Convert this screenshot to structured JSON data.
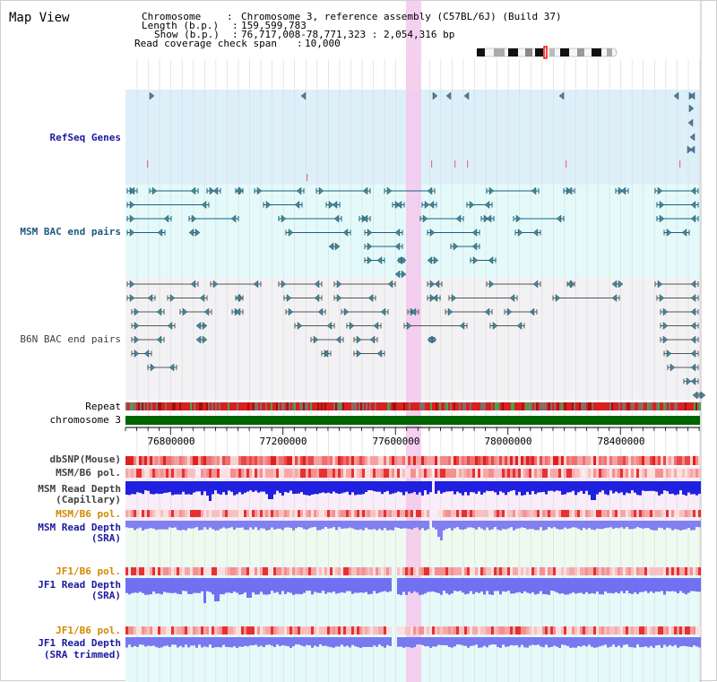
{
  "title": "Map View",
  "header": {
    "chromosome_label": "Chromosome",
    "chromosome_value": "Chromosome 3, reference assembly (C57BL/6J) (Build 37)",
    "length_label": "Length (b.p.)",
    "length_value": "159,599,783",
    "show_label": "Show (b.p.)",
    "show_value": "76,717,008-78,771,323 : 2,054,316 bp",
    "span_label": "Read coverage check span",
    "span_value": "10,000"
  },
  "tracks": {
    "refseq": "RefSeq Genes",
    "msm_bac": "MSM BAC end pairs",
    "b6n_bac": "B6N BAC end pairs",
    "repeat": "Repeat",
    "chromosome": "chromosome 3",
    "dbsnp": "dbSNP(Mouse)",
    "msm_b6_pol": "MSM/B6 pol.",
    "msm_depth_cap_1": "MSM Read Depth",
    "msm_depth_cap_2": "(Capillary)",
    "msm_b6_pol2": "MSM/B6 pol.",
    "msm_depth_sra_1": "MSM Read Depth",
    "msm_depth_sra_2": "(SRA)",
    "jf1_b6_pol": "JF1/B6 pol.",
    "jf1_depth_sra_1": "JF1 Read Depth",
    "jf1_depth_sra_2": "(SRA)",
    "jf1_b6_pol2": "JF1/B6 pol.",
    "jf1_depth_trim_1": "JF1 Read Depth",
    "jf1_depth_trim_2": "(SRA trimmed)"
  },
  "axis": {
    "ticks": [
      "76800000",
      "77200000",
      "77600000",
      "78000000",
      "78400000"
    ]
  },
  "colors": {
    "label_blue": "#1a1aa0",
    "label_teal": "#1a5a7a",
    "label_orange": "#d08a00",
    "label_dark": "#404040",
    "highlight": "#f5c8ec",
    "refseq_bg": "#ddf0fa",
    "msm_bg": "#e4fafa",
    "b6n_bg": "#f2f2f4",
    "chrom_green": "#006400"
  }
}
